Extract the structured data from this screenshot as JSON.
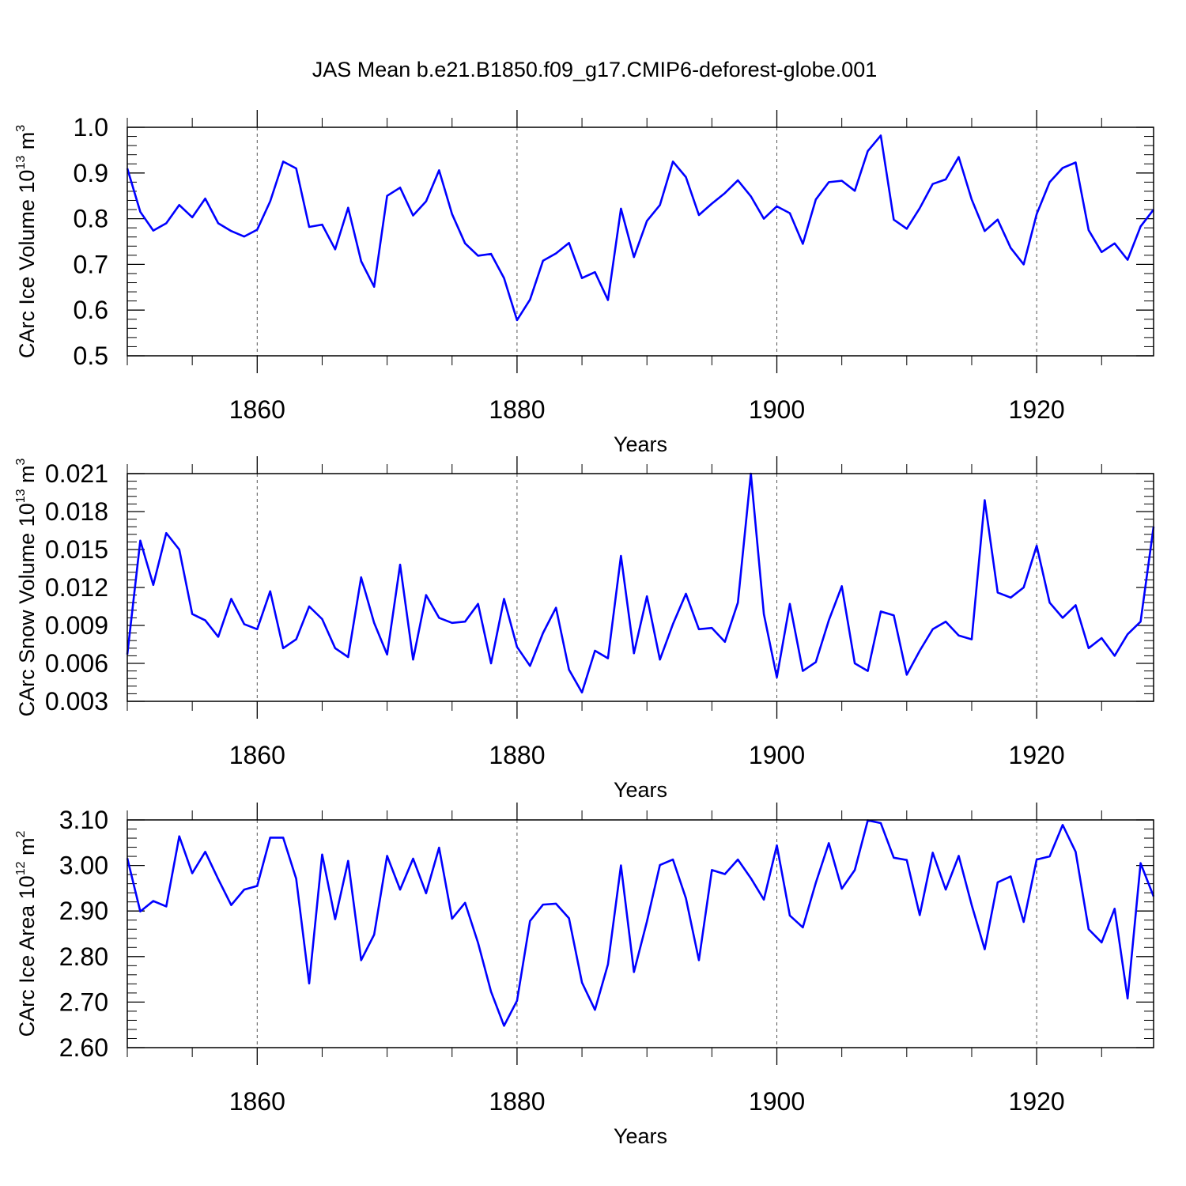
{
  "figure_title": "JAS Mean b.e21.B1850.f09_g17.CMIP6-deforest-globe.001",
  "chart_data": [
    {
      "type": "line",
      "title": "",
      "xlabel": "Years",
      "ylabel": "CArc Ice Volume 10",
      "ylabel_exp": "13",
      "ylabel_unit": " m",
      "ylabel_unit_exp": "3",
      "xlim": [
        1850,
        1929
      ],
      "ylim": [
        0.5,
        1.0
      ],
      "x_ticks": [
        1860,
        1880,
        1900,
        1920
      ],
      "x_tick_labels": [
        "1860",
        "1880",
        "1900",
        "1920"
      ],
      "y_ticks": [
        0.5,
        0.6,
        0.7,
        0.8,
        0.9,
        1.0
      ],
      "y_tick_labels": [
        "0.5",
        "0.6",
        "0.7",
        "0.8",
        "0.9",
        "1.0"
      ],
      "grid": "vertical dashed at major x ticks",
      "line_color": "#0000ff",
      "series": [
        {
          "x_start": 1850,
          "values": [
            0.91,
            0.815,
            0.774,
            0.79,
            0.83,
            0.803,
            0.844,
            0.79,
            0.773,
            0.761,
            0.776,
            0.838,
            0.925,
            0.91,
            0.782,
            0.787,
            0.733,
            0.824,
            0.707,
            0.651,
            0.85,
            0.868,
            0.807,
            0.838,
            0.906,
            0.81,
            0.746,
            0.719,
            0.723,
            0.67,
            0.578,
            0.623,
            0.708,
            0.724,
            0.747,
            0.67,
            0.683,
            0.622,
            0.822,
            0.716,
            0.795,
            0.83,
            0.925,
            0.891,
            0.808,
            0.833,
            0.856,
            0.884,
            0.849,
            0.8,
            0.827,
            0.812,
            0.745,
            0.842,
            0.88,
            0.883,
            0.861,
            0.948,
            0.982,
            0.798,
            0.778,
            0.823,
            0.876,
            0.886,
            0.935,
            0.842,
            0.773,
            0.798,
            0.736,
            0.7,
            0.81,
            0.88,
            0.911,
            0.923,
            0.775,
            0.727,
            0.746,
            0.71,
            0.783,
            0.82
          ]
        }
      ]
    },
    {
      "type": "line",
      "title": "",
      "xlabel": "Years",
      "ylabel": "CArc Snow Volume 10",
      "ylabel_exp": "13",
      "ylabel_unit": " m",
      "ylabel_unit_exp": "3",
      "xlim": [
        1850,
        1929
      ],
      "ylim": [
        0.003,
        0.021
      ],
      "x_ticks": [
        1860,
        1880,
        1900,
        1920
      ],
      "x_tick_labels": [
        "1860",
        "1880",
        "1900",
        "1920"
      ],
      "y_ticks": [
        0.003,
        0.006,
        0.009,
        0.012,
        0.015,
        0.018,
        0.021
      ],
      "y_tick_labels": [
        "0.003",
        "0.006",
        "0.009",
        "0.012",
        "0.015",
        "0.018",
        "0.021"
      ],
      "grid": "vertical dashed at major x ticks",
      "line_color": "#0000ff",
      "series": [
        {
          "x_start": 1850,
          "values": [
            0.0067,
            0.0157,
            0.0122,
            0.0163,
            0.015,
            0.0099,
            0.0094,
            0.0081,
            0.0111,
            0.0091,
            0.0087,
            0.0117,
            0.0072,
            0.0079,
            0.0105,
            0.0095,
            0.0072,
            0.0065,
            0.0128,
            0.0092,
            0.0067,
            0.0138,
            0.0063,
            0.0114,
            0.0096,
            0.0092,
            0.0093,
            0.0107,
            0.006,
            0.0111,
            0.0073,
            0.0058,
            0.0084,
            0.0104,
            0.0055,
            0.0037,
            0.007,
            0.0064,
            0.0145,
            0.0068,
            0.0113,
            0.0063,
            0.0091,
            0.0115,
            0.0087,
            0.0088,
            0.0077,
            0.0108,
            0.021,
            0.0099,
            0.0049,
            0.0107,
            0.0054,
            0.0061,
            0.0094,
            0.0121,
            0.006,
            0.0054,
            0.0101,
            0.0098,
            0.0051,
            0.007,
            0.0087,
            0.0093,
            0.0082,
            0.0079,
            0.0189,
            0.0116,
            0.0112,
            0.012,
            0.0153,
            0.0108,
            0.0096,
            0.0106,
            0.0072,
            0.008,
            0.0066,
            0.0083,
            0.0093,
            0.0168
          ]
        }
      ]
    },
    {
      "type": "line",
      "title": "",
      "xlabel": "Years",
      "ylabel": "CArc Ice Area 10",
      "ylabel_exp": "12",
      "ylabel_unit": " m",
      "ylabel_unit_exp": "2",
      "xlim": [
        1850,
        1929
      ],
      "ylim": [
        2.6,
        3.1
      ],
      "x_ticks": [
        1860,
        1880,
        1900,
        1920
      ],
      "x_tick_labels": [
        "1860",
        "1880",
        "1900",
        "1920"
      ],
      "y_ticks": [
        2.6,
        2.7,
        2.8,
        2.9,
        3.0,
        3.1
      ],
      "y_tick_labels": [
        "2.60",
        "2.70",
        "2.80",
        "2.90",
        "3.00",
        "3.10"
      ],
      "grid": "vertical dashed at major x ticks",
      "line_color": "#0000ff",
      "series": [
        {
          "x_start": 1850,
          "values": [
            3.016,
            2.899,
            2.922,
            2.91,
            3.064,
            2.983,
            3.03,
            2.97,
            2.913,
            2.947,
            2.955,
            3.061,
            3.061,
            2.971,
            2.741,
            3.024,
            2.882,
            3.01,
            2.792,
            2.848,
            3.021,
            2.947,
            3.015,
            2.939,
            3.039,
            2.883,
            2.918,
            2.83,
            2.723,
            2.648,
            2.703,
            2.878,
            2.914,
            2.916,
            2.884,
            2.743,
            2.683,
            2.783,
            3.0,
            2.766,
            2.877,
            3.001,
            3.013,
            2.928,
            2.792,
            2.99,
            2.981,
            3.013,
            2.972,
            2.925,
            3.044,
            2.89,
            2.864,
            2.962,
            3.049,
            2.949,
            2.99,
            3.099,
            3.093,
            3.017,
            3.012,
            2.891,
            3.028,
            2.947,
            3.021,
            2.913,
            2.816,
            2.963,
            2.976,
            2.876,
            3.013,
            3.02,
            3.089,
            3.03,
            2.86,
            2.831,
            2.905,
            2.708,
            3.005,
            2.932
          ]
        }
      ]
    }
  ]
}
